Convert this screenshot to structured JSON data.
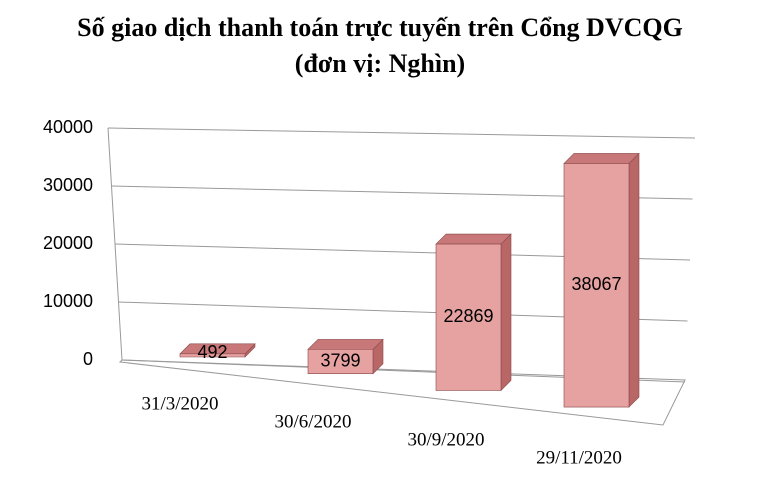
{
  "chart_data": {
    "type": "bar3d",
    "title": "Số giao dịch thanh toán trực tuyến trên Cổng DVCQG (đơn vị: Nghìn)",
    "categories": [
      "31/3/2020",
      "30/6/2020",
      "30/9/2020",
      "29/11/2020"
    ],
    "values": [
      492,
      3799,
      22869,
      38067
    ],
    "color": "#e6a1a1",
    "ylim": [
      0,
      40000
    ],
    "yticks": [
      0,
      10000,
      20000,
      30000,
      40000
    ],
    "grid": true
  }
}
